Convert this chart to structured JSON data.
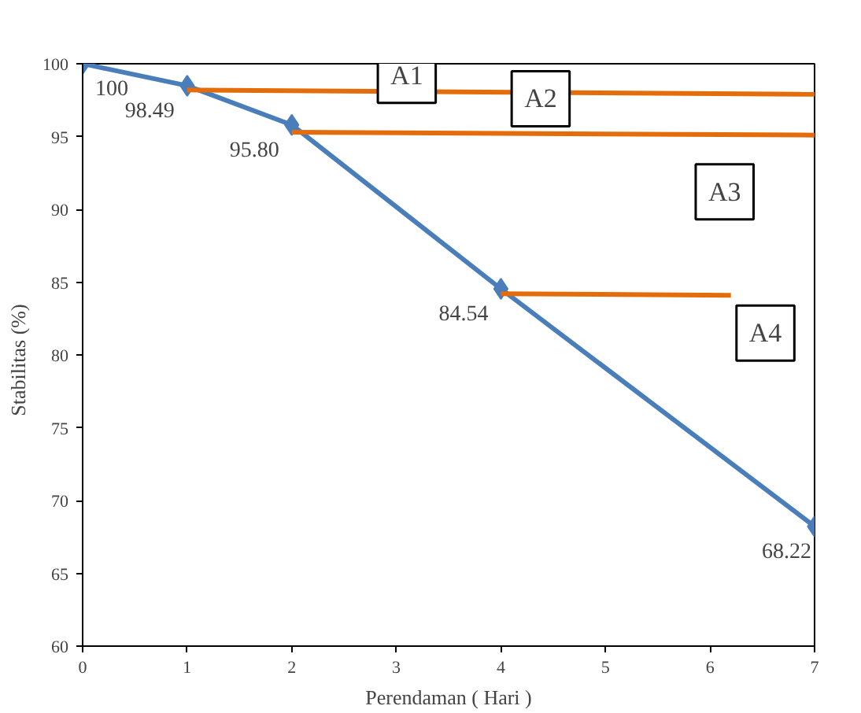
{
  "chart_data": {
    "type": "line",
    "xlabel": "Perendaman ( Hari )",
    "ylabel": "Stabilitas   (%)",
    "xlim": [
      0,
      7
    ],
    "xticks": [
      0,
      1,
      2,
      3,
      4,
      5,
      6,
      7
    ],
    "ylim": [
      60,
      100
    ],
    "yticks": [
      60,
      65,
      70,
      75,
      80,
      85,
      90,
      95,
      100
    ],
    "grid": false,
    "marker": "diamond",
    "line_style": "solid",
    "series": [
      {
        "color": "#4a7ebb",
        "x": [
          0,
          1,
          2,
          4,
          7
        ],
        "values": [
          100,
          98.49,
          95.8,
          84.54,
          68.22
        ],
        "value_labels": [
          "100",
          "98.49",
          "95.80",
          "84.54",
          "68.22"
        ]
      },
      {
        "color": "#e46c0a",
        "x": [
          1,
          7
        ],
        "values": [
          98.2,
          97.9
        ],
        "marker": "none"
      },
      {
        "color": "#e46c0a",
        "x": [
          2,
          7
        ],
        "values": [
          95.3,
          95.1
        ],
        "marker": "none"
      },
      {
        "color": "#e46c0a",
        "x": [
          4,
          6.2
        ],
        "values": [
          84.2,
          84.1
        ],
        "marker": "none"
      }
    ],
    "annotations": [
      {
        "text": "A1",
        "x": 3.1,
        "y": 99.2
      },
      {
        "text": "A2",
        "x": 4.38,
        "y": 97.6
      },
      {
        "text": "A3",
        "x": 6.14,
        "y": 91.2
      },
      {
        "text": "A4",
        "x": 6.53,
        "y": 81.5
      }
    ]
  }
}
